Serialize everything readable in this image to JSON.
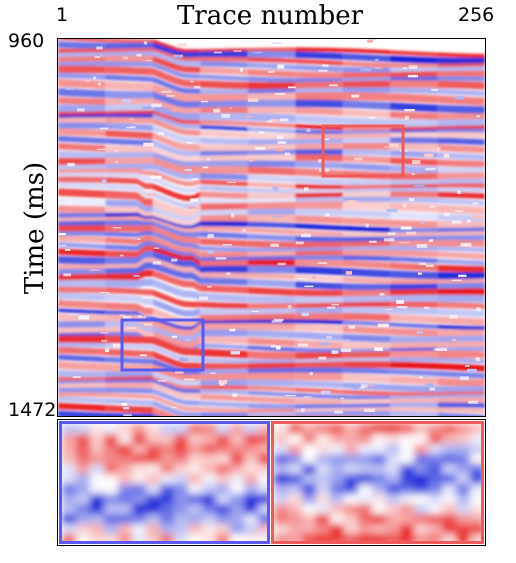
{
  "axes": {
    "x_title": "Trace number",
    "x_start": "1",
    "x_end": "256",
    "y_title": "Time (ms)",
    "y_top": "960",
    "y_bottom": "1472"
  },
  "colors": {
    "positive": "#e8100f",
    "negative": "#0b1bd8",
    "zero": "#ffffff",
    "blue_box": "#5a5af0",
    "red_box": "#f05a5a"
  },
  "boxes": [
    {
      "name": "blue-highlight-box",
      "color_key": "blue_box"
    },
    {
      "name": "red-highlight-box",
      "color_key": "red_box"
    }
  ]
}
